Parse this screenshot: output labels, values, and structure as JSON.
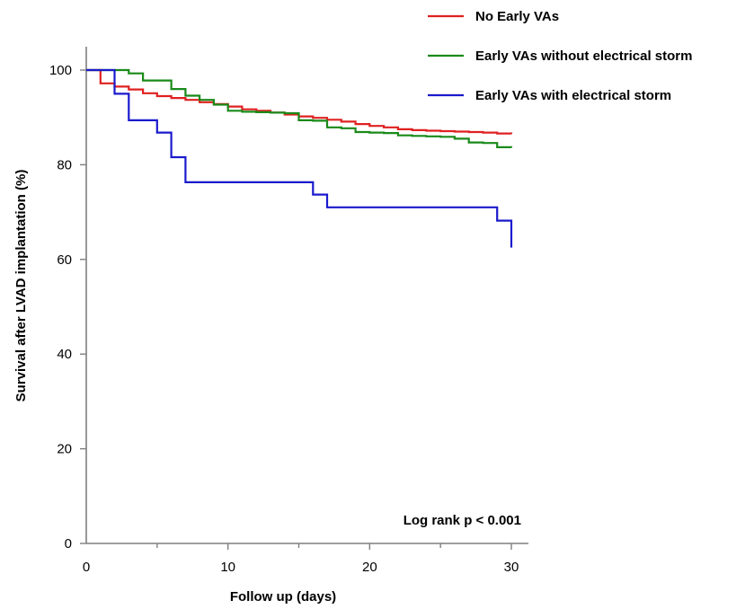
{
  "chart_data": {
    "type": "line",
    "title": "",
    "xlabel": "Follow up (days)",
    "ylabel": "Survival after LVAD implantation (%)",
    "xlim": [
      0,
      31
    ],
    "ylim": [
      0,
      100
    ],
    "x_ticks": [
      0,
      10,
      20,
      30
    ],
    "y_ticks": [
      0,
      20,
      40,
      60,
      80,
      100
    ],
    "grid": false,
    "legend_position": "top-right",
    "annotation": "Log rank p < 0.001",
    "series": [
      {
        "name": "No Early VAs",
        "color": "#e02020",
        "x": [
          0,
          1,
          2,
          3,
          4,
          5,
          6,
          7,
          8,
          9,
          10,
          11,
          12,
          13,
          14,
          15,
          16,
          17,
          18,
          19,
          20,
          21,
          22,
          23,
          24,
          25,
          26,
          27,
          28,
          29,
          30
        ],
        "y": [
          100,
          97.2,
          96.5,
          95.9,
          95.1,
          94.5,
          94.1,
          93.7,
          93.2,
          92.8,
          92.3,
          91.7,
          91.4,
          91.0,
          90.6,
          90.2,
          89.9,
          89.5,
          89.1,
          88.6,
          88.2,
          87.9,
          87.5,
          87.3,
          87.2,
          87.1,
          87.0,
          86.9,
          86.8,
          86.6,
          86.5
        ]
      },
      {
        "name": "Early VAs without electrical storm",
        "color": "#1a8a1a",
        "x": [
          0,
          3,
          4,
          6,
          7,
          8,
          9,
          10,
          11,
          12,
          13,
          14,
          15,
          16,
          17,
          18,
          19,
          20,
          21,
          22,
          23,
          24,
          25,
          26,
          27,
          28,
          29,
          30
        ],
        "y": [
          100,
          99.3,
          97.8,
          96.0,
          94.6,
          93.7,
          92.7,
          91.4,
          91.2,
          91.1,
          91.0,
          90.9,
          89.4,
          89.3,
          87.9,
          87.7,
          86.9,
          86.8,
          86.7,
          86.2,
          86.1,
          86.0,
          85.9,
          85.5,
          84.7,
          84.6,
          83.7,
          83.6
        ]
      },
      {
        "name": "Early VAs with electrical storm",
        "color": "#1a1acc",
        "x": [
          0,
          2,
          3,
          5,
          6,
          7,
          10,
          16,
          17,
          20,
          25,
          29,
          30
        ],
        "y": [
          100,
          95.0,
          89.4,
          86.8,
          81.6,
          76.3,
          76.3,
          73.7,
          71.0,
          71.0,
          71.0,
          68.2,
          62.5
        ]
      }
    ]
  }
}
